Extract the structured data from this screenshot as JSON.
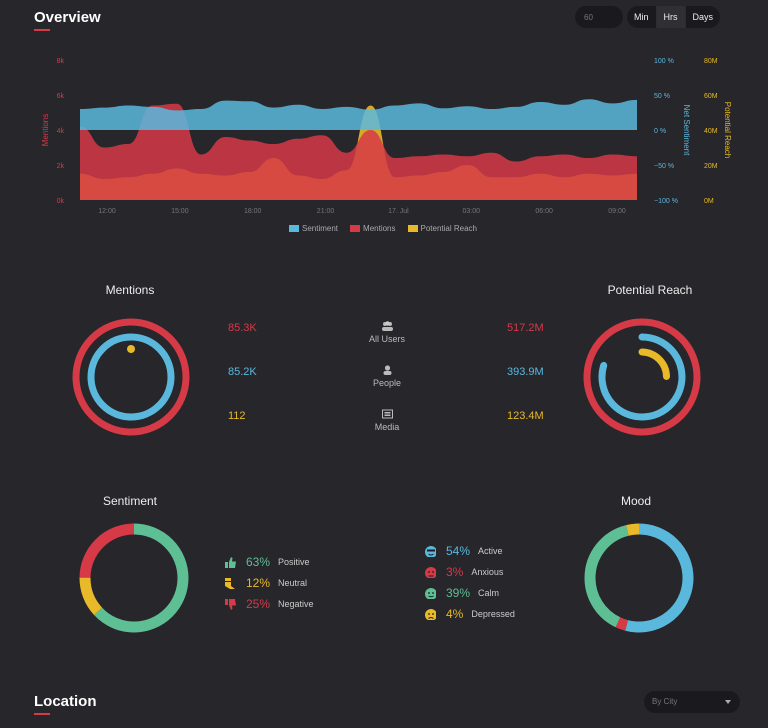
{
  "overview": {
    "title": "Overview"
  },
  "toolbar": {
    "period_value": "60",
    "units": [
      "Min",
      "Hrs",
      "Days"
    ],
    "active_unit": "Hrs"
  },
  "colors": {
    "sentiment": "#5bb8dd",
    "mentions": "#d63a47",
    "reach": "#e8b928",
    "calm": "#5fbf94",
    "background": "#26262b"
  },
  "chart_data": {
    "type": "area",
    "x_ticks": [
      "12:00",
      "15:00",
      "18:00",
      "21:00",
      "17. Jul",
      "03:00",
      "06:00",
      "09:00"
    ],
    "left_axis": {
      "label": "Mentions",
      "ticks": [
        "0k",
        "2k",
        "4k",
        "6k",
        "8k"
      ],
      "range": [
        0,
        8000
      ]
    },
    "right_axis_1": {
      "label": "Net Sentiment",
      "ticks": [
        "−100 %",
        "−50 %",
        "0 %",
        "50 %",
        "100 %"
      ],
      "range": [
        -100,
        100
      ]
    },
    "right_axis_2": {
      "label": "Potential Reach",
      "ticks": [
        "0M",
        "20M",
        "40M",
        "60M",
        "80M"
      ],
      "range": [
        0,
        80
      ]
    },
    "series": [
      {
        "name": "Sentiment",
        "axis": "Net Sentiment",
        "values": [
          30,
          32,
          35,
          33,
          28,
          30,
          42,
          41,
          32,
          36,
          30,
          33,
          29,
          35,
          38,
          31,
          34,
          30,
          33,
          40,
          36,
          44,
          38,
          43
        ]
      },
      {
        "name": "Mentions",
        "axis": "Mentions",
        "values": [
          4200,
          3000,
          3200,
          5400,
          5500,
          2600,
          3600,
          3400,
          3200,
          3500,
          3700,
          2700,
          4000,
          2400,
          2500,
          2600,
          2500,
          2700,
          2200,
          2500,
          2600,
          2400,
          2600,
          2500
        ]
      },
      {
        "name": "Potential Reach",
        "axis": "Potential Reach",
        "values": [
          15,
          12,
          13,
          15,
          18,
          15,
          14,
          16,
          24,
          14,
          12,
          17,
          54,
          13,
          14,
          16,
          20,
          13,
          13,
          15,
          13,
          15,
          14,
          15
        ]
      }
    ],
    "legend": [
      "Sentiment",
      "Mentions",
      "Potential Reach"
    ],
    "legend_placement": "bottom-center"
  },
  "mentions": {
    "title": "Mentions"
  },
  "reach": {
    "title": "Potential Reach"
  },
  "users": [
    {
      "label": "All Users",
      "icon": "users-icon",
      "mentions": "85.3K",
      "reach": "517.2M",
      "color": "#d63a47"
    },
    {
      "label": "People",
      "icon": "person-icon",
      "mentions": "85.2K",
      "reach": "393.9M",
      "color": "#5bb8dd"
    },
    {
      "label": "Media",
      "icon": "media-icon",
      "mentions": "112",
      "reach": "123.4M",
      "color": "#e8b928"
    }
  ],
  "sentiment": {
    "title": "Sentiment",
    "items": [
      {
        "pct": "63%",
        "label": "Positive",
        "icon": "thumbs-up-icon",
        "color": "#5fbf94",
        "value": 63
      },
      {
        "pct": "12%",
        "label": "Neutral",
        "icon": "thumbs-sideways-icon",
        "color": "#e8b928",
        "value": 12
      },
      {
        "pct": "25%",
        "label": "Negative",
        "icon": "thumbs-down-icon",
        "color": "#d63a47",
        "value": 25
      }
    ]
  },
  "mood": {
    "title": "Mood",
    "items": [
      {
        "pct": "54%",
        "label": "Active",
        "icon": "cool-face-icon",
        "color": "#5bb8dd",
        "value": 54
      },
      {
        "pct": "3%",
        "label": "Anxious",
        "icon": "anxious-face-icon",
        "color": "#d63a47",
        "value": 3
      },
      {
        "pct": "39%",
        "label": "Calm",
        "icon": "calm-face-icon",
        "color": "#5fbf94",
        "value": 39
      },
      {
        "pct": "4%",
        "label": "Depressed",
        "icon": "sad-face-icon",
        "color": "#e8b928",
        "value": 4
      }
    ]
  },
  "location": {
    "title": "Location",
    "select_value": "By City"
  }
}
